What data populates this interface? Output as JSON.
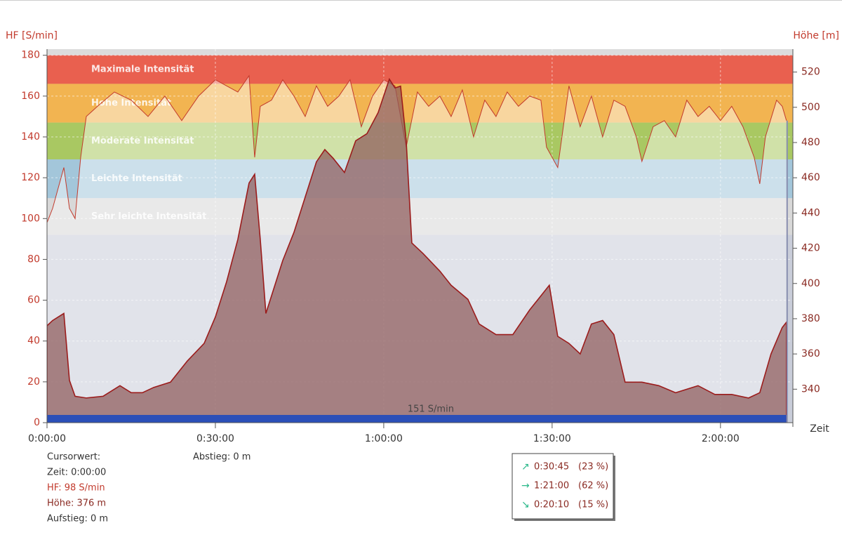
{
  "chart_data": {
    "type": "line",
    "ylabel": "HF [S/min]",
    "y2label": "Höhe [m]",
    "xlabel": "Zeit",
    "xlim": [
      0,
      132.9
    ],
    "xticks": [
      {
        "value": 0,
        "label": "0:00:00"
      },
      {
        "value": 30,
        "label": "0:30:00"
      },
      {
        "value": 60,
        "label": "1:00:00"
      },
      {
        "value": 90,
        "label": "1:30:00"
      },
      {
        "value": 120,
        "label": "2:00:00"
      }
    ],
    "ylim": [
      0,
      183
    ],
    "yticks": [
      0,
      20,
      40,
      60,
      80,
      100,
      120,
      140,
      160,
      180
    ],
    "y2lim": [
      321,
      533
    ],
    "y2ticks": [
      340,
      360,
      380,
      400,
      420,
      440,
      460,
      480,
      500,
      520
    ],
    "grid": true,
    "zones": [
      {
        "name": "Maximale Intensität",
        "from": 166,
        "to": 180,
        "color": "#e9604f"
      },
      {
        "name": "Hohe Intensität",
        "from": 147,
        "to": 166,
        "color": "#f2b451"
      },
      {
        "name": "Moderate Intensität",
        "from": 129,
        "to": 147,
        "color": "#a9c862"
      },
      {
        "name": "Leichte Intensität",
        "from": 110,
        "to": 129,
        "color": "#a3c6da"
      },
      {
        "name": "Sehr leichte Intensität",
        "from": 92,
        "to": 110,
        "color": "#d8d8d8"
      }
    ],
    "average": {
      "value": 151,
      "label": "151 S/min",
      "color": "#2b4fb8"
    },
    "series": [
      {
        "name": "HF",
        "axis": "y",
        "color": "#c23a2c",
        "x": [
          0,
          1,
          3,
          4,
          5,
          6,
          7,
          9,
          12,
          15,
          18,
          21,
          24,
          27,
          30,
          32,
          34,
          36,
          37,
          38,
          40,
          42,
          44,
          46,
          48,
          50,
          52,
          54,
          56,
          58,
          60,
          62,
          64,
          66,
          68,
          70,
          72,
          74,
          76,
          78,
          80,
          82,
          84,
          86,
          88,
          89,
          91,
          93,
          95,
          97,
          99,
          101,
          103,
          105,
          106,
          108,
          110,
          112,
          114,
          116,
          118,
          120,
          122,
          124,
          126,
          127,
          128,
          130,
          131,
          131.75
        ],
        "values": [
          98,
          105,
          125,
          105,
          100,
          130,
          150,
          155,
          162,
          158,
          150,
          160,
          148,
          160,
          168,
          165,
          162,
          170,
          130,
          155,
          158,
          168,
          160,
          150,
          165,
          155,
          160,
          168,
          145,
          160,
          168,
          165,
          135,
          162,
          155,
          160,
          150,
          163,
          140,
          158,
          150,
          162,
          155,
          160,
          158,
          135,
          125,
          165,
          145,
          160,
          140,
          158,
          155,
          140,
          128,
          145,
          148,
          140,
          158,
          150,
          155,
          148,
          155,
          145,
          130,
          117,
          140,
          158,
          155,
          148
        ]
      },
      {
        "name": "Höhe",
        "axis": "y2",
        "color": "#9b1c1c",
        "x": [
          0,
          1,
          3,
          4,
          5,
          7,
          10,
          13,
          15,
          17,
          19,
          22,
          25,
          28,
          30,
          32,
          34,
          36,
          37,
          38,
          39,
          40,
          42,
          44,
          46,
          48,
          49.5,
          51,
          53,
          55,
          57,
          59,
          61,
          62,
          63,
          64,
          65,
          67,
          70,
          72,
          75,
          77,
          80,
          83,
          86,
          88,
          89.5,
          91,
          93,
          95,
          97,
          99,
          101,
          103,
          106,
          109,
          112,
          116,
          119,
          122,
          125,
          127,
          129,
          131,
          131.75
        ],
        "values": [
          376,
          379,
          383,
          345,
          336,
          335,
          336,
          342,
          338,
          338,
          341,
          344,
          356,
          366,
          381,
          401,
          425,
          457,
          462,
          425,
          383,
          393,
          413,
          429,
          449,
          469,
          476,
          471,
          463,
          481,
          485,
          497,
          516,
          511,
          512,
          481,
          423,
          417,
          407,
          399,
          391,
          377,
          371,
          371,
          385,
          393,
          399,
          370,
          366,
          360,
          377,
          379,
          371,
          344,
          344,
          342,
          338,
          342,
          337,
          337,
          335,
          338,
          360,
          375,
          378
        ]
      }
    ],
    "cursor": {
      "title": "Cursorwert:",
      "rows": [
        "Zeit: 0:00:00",
        "HF: 98 S/min",
        "Höhe:  376 m",
        "Aufstieg: 0 m"
      ],
      "descent": "Abstieg: 0 m"
    },
    "summary": [
      {
        "time": "0:30:45",
        "percent": "(23 %)"
      },
      {
        "time": "1:21:00",
        "percent": "(62 %)"
      },
      {
        "time": "0:20:10",
        "percent": "(15 %)"
      }
    ]
  }
}
